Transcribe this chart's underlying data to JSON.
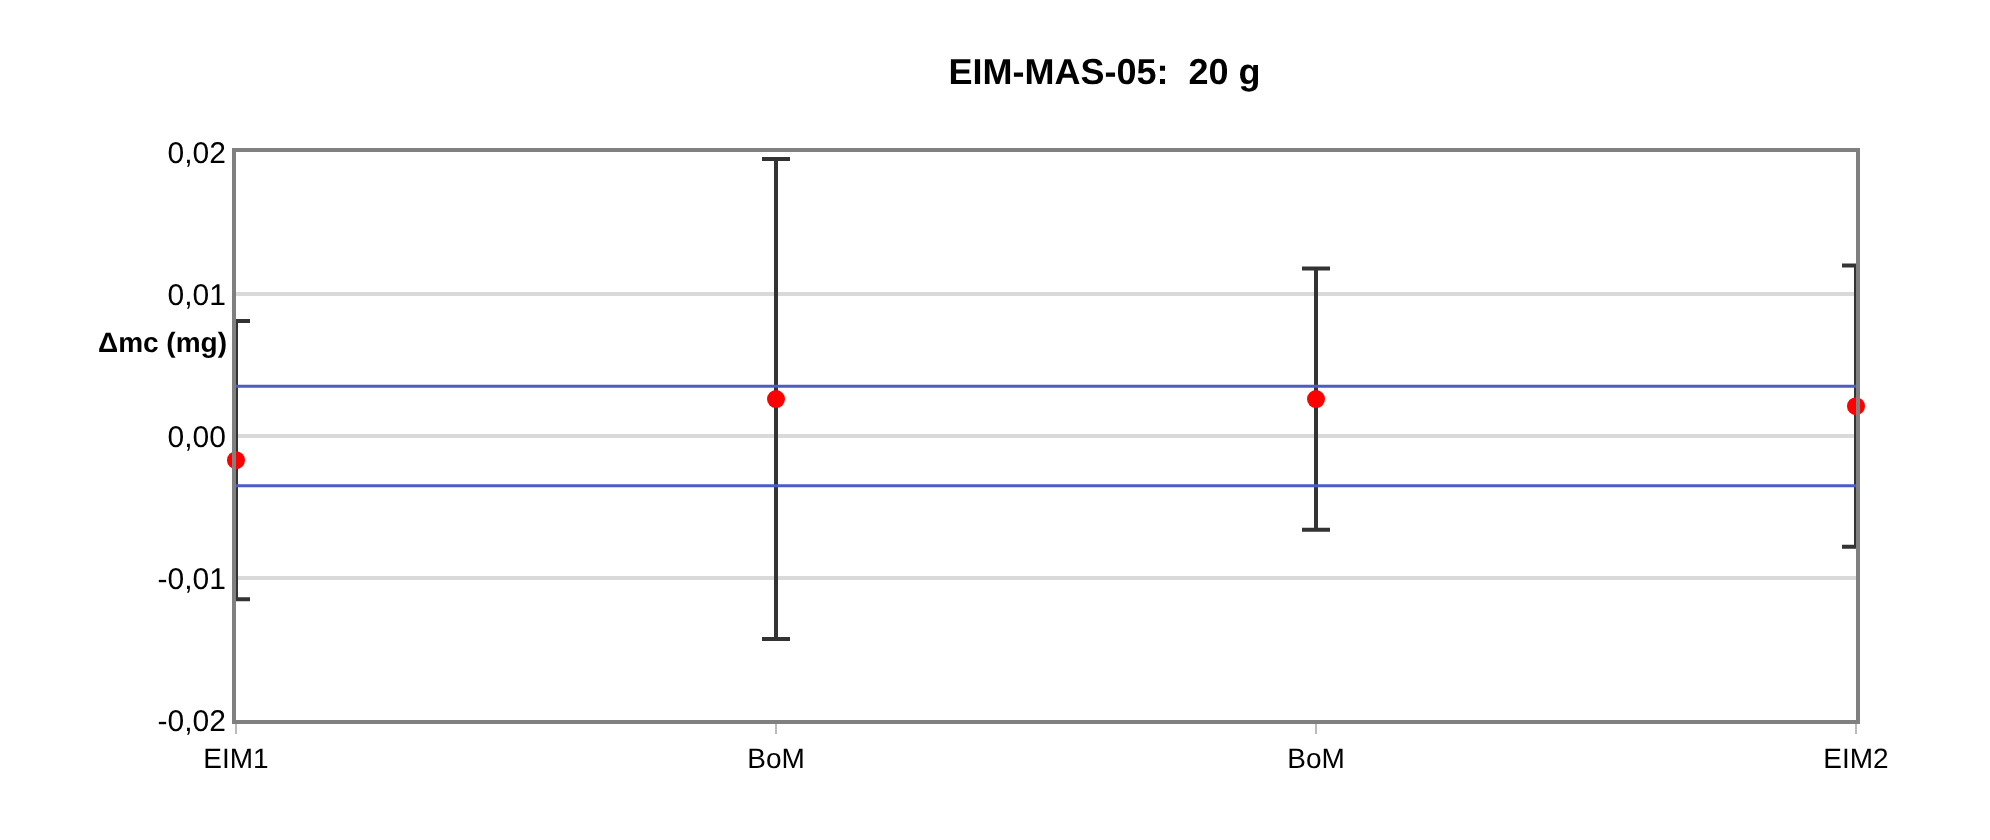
{
  "chart_data": {
    "type": "scatter",
    "title": "EIM-MAS-05:  20 g",
    "ylabel": "Δmc (mg)",
    "categories": [
      "EIM1",
      "BoM",
      "BoM",
      "EIM2"
    ],
    "series": [
      {
        "color": "#ff0000",
        "values": [
          -0.0017,
          0.0026,
          0.0026,
          0.0021
        ],
        "errors": [
          0.0098,
          0.0169,
          0.0092,
          0.0099
        ]
      }
    ],
    "ylim": [
      -0.02,
      0.02
    ],
    "yticks": [
      {
        "value": -0.02,
        "label": "-0,02"
      },
      {
        "value": -0.01,
        "label": "-0,01"
      },
      {
        "value": 0,
        "label": "0,00"
      },
      {
        "value": 0.01,
        "label": "0,01"
      },
      {
        "value": 0.02,
        "label": "0,02"
      }
    ],
    "ref_lines": [
      {
        "axis": "y",
        "value": 0.0035,
        "color": "#4b5cc4"
      },
      {
        "axis": "y",
        "value": -0.0035,
        "color": "#4b5cc4"
      }
    ],
    "grid": "y",
    "marker": "circle"
  }
}
